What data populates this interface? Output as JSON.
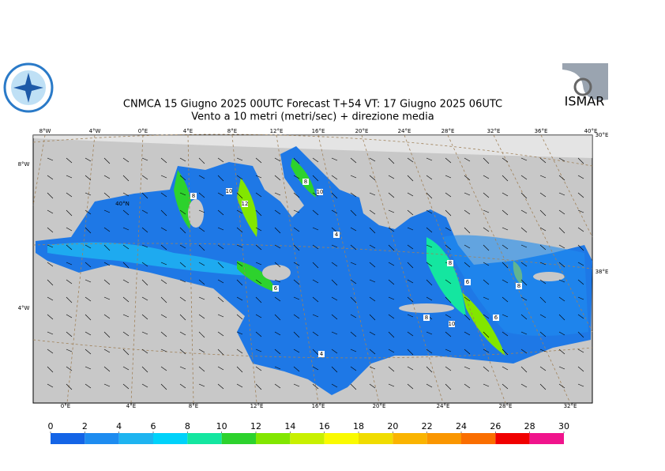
{
  "header": {
    "title": "CNMCA 15   Giugno  2025 00UTC Forecast T+54 VT: 17   Giugno  2025 06UTC",
    "subtitle": "Vento a 10 metri (metri/sec) + direzione media"
  },
  "logos": {
    "right": "ISMAR"
  },
  "map": {
    "top_lon_labels": [
      "8°W",
      "4°W",
      "0°E",
      "4°E",
      "8°E",
      "12°E",
      "16°E",
      "20°E",
      "24°E",
      "28°E",
      "32°E",
      "36°E",
      "40°E"
    ],
    "corner_label": "30°E",
    "bottom_lon_labels": [
      "0°E",
      "4°E",
      "8°E",
      "12°E",
      "16°E",
      "20°E",
      "24°E",
      "28°E",
      "32°E"
    ],
    "left_lat_labels": [
      "8°W",
      "40°N",
      "4°W"
    ],
    "right_lat_labels": [
      "38°E"
    ],
    "contour_labels": [
      "8",
      "10",
      "12",
      "8",
      "10",
      "4",
      "8",
      "6",
      "8",
      "6",
      "8",
      "10",
      "6",
      "4"
    ]
  },
  "colorbar": {
    "ticks": [
      0,
      2,
      4,
      6,
      8,
      10,
      12,
      14,
      16,
      18,
      20,
      22,
      24,
      26,
      28,
      30
    ],
    "colors": [
      "#1464e6",
      "#1e8cf0",
      "#1eb4f0",
      "#00d2fa",
      "#14e6a0",
      "#2dd22d",
      "#82e600",
      "#c8f000",
      "#fafa00",
      "#f0dc00",
      "#fab400",
      "#fa9600",
      "#fa6e00",
      "#f00000",
      "#f0148c"
    ]
  }
}
